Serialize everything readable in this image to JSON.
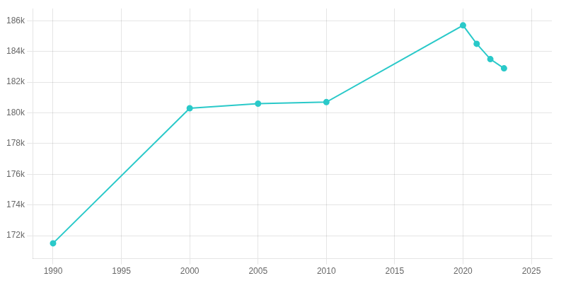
{
  "chart_data": {
    "type": "line",
    "x": [
      1990,
      2000,
      2005,
      2010,
      2020,
      2021,
      2022,
      2023
    ],
    "values": [
      171500,
      180300,
      180600,
      180700,
      185700,
      184500,
      183500,
      182900
    ],
    "color": "#2ac9c9",
    "marker": "circle",
    "xlim": [
      1988.5,
      2026.5
    ],
    "xticks": [
      1990,
      1995,
      2000,
      2005,
      2010,
      2015,
      2020,
      2025
    ],
    "ylim": [
      170500,
      186800
    ],
    "yticks": [
      {
        "value": 172000,
        "label": "172k"
      },
      {
        "value": 174000,
        "label": "174k"
      },
      {
        "value": 176000,
        "label": "176k"
      },
      {
        "value": 178000,
        "label": "178k"
      },
      {
        "value": 180000,
        "label": "180k"
      },
      {
        "value": 182000,
        "label": "182k"
      },
      {
        "value": 184000,
        "label": "184k"
      },
      {
        "value": 186000,
        "label": "186k"
      }
    ],
    "grid": true
  }
}
